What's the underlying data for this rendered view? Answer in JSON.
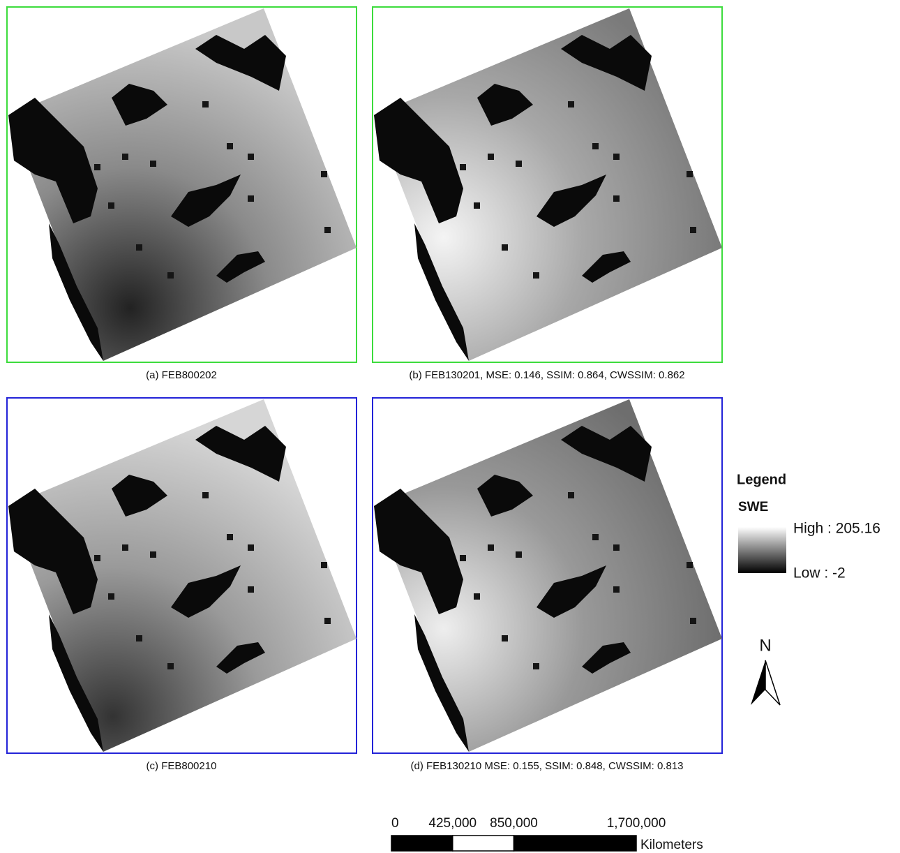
{
  "panels": [
    {
      "caption": "(a) FEB800202"
    },
    {
      "caption": "(b) FEB130201, MSE: 0.146, SSIM: 0.864, CWSSIM: 0.862"
    },
    {
      "caption": "(c) FEB800210"
    },
    {
      "caption": "(d) FEB130210 MSE: 0.155, SSIM: 0.848, CWSSIM: 0.813"
    }
  ],
  "legend": {
    "title": "Legend",
    "field": "SWE",
    "high": "High : 205.16",
    "low": "Low : -2"
  },
  "north": "N",
  "scale_bar": {
    "ticks": [
      0,
      {
        "value": 425000,
        "label": "425,000"
      },
      {
        "value": 850000,
        "label": "850,000"
      },
      {
        "value": 1700000,
        "label": "1,700,000"
      }
    ],
    "unit": "Kilometers"
  }
}
